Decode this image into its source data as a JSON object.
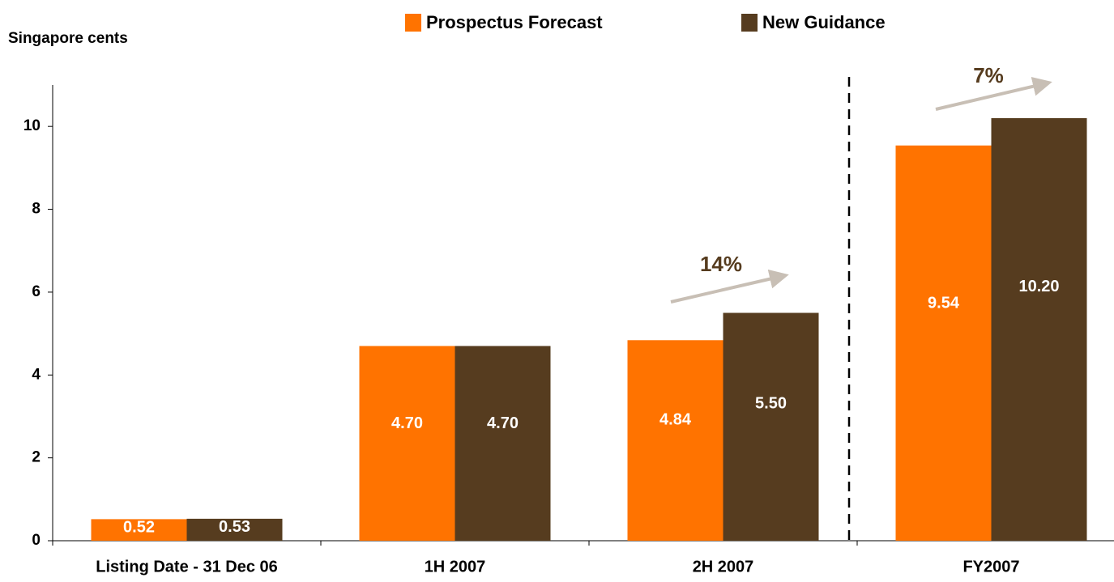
{
  "chart_data": {
    "type": "bar",
    "y_axis_label": "Singapore cents",
    "categories": [
      "Listing Date - 31 Dec 06",
      "1H 2007",
      "2H 2007",
      "FY2007"
    ],
    "series": [
      {
        "name": "Prospectus Forecast",
        "color": "#ff7300",
        "values": [
          0.52,
          4.7,
          4.84,
          9.54
        ],
        "value_labels": [
          "0.52",
          "4.70",
          "4.84",
          "9.54"
        ]
      },
      {
        "name": "New Guidance",
        "color": "#563c1f",
        "values": [
          0.53,
          4.7,
          5.5,
          10.2
        ],
        "value_labels": [
          "0.53",
          "4.70",
          "5.50",
          "10.20"
        ]
      }
    ],
    "annotations": [
      "14%",
      "7%"
    ],
    "ylim": [
      0,
      11
    ],
    "yticks": [
      0,
      2,
      4,
      6,
      8,
      10
    ],
    "grid": false,
    "legend": "top"
  }
}
